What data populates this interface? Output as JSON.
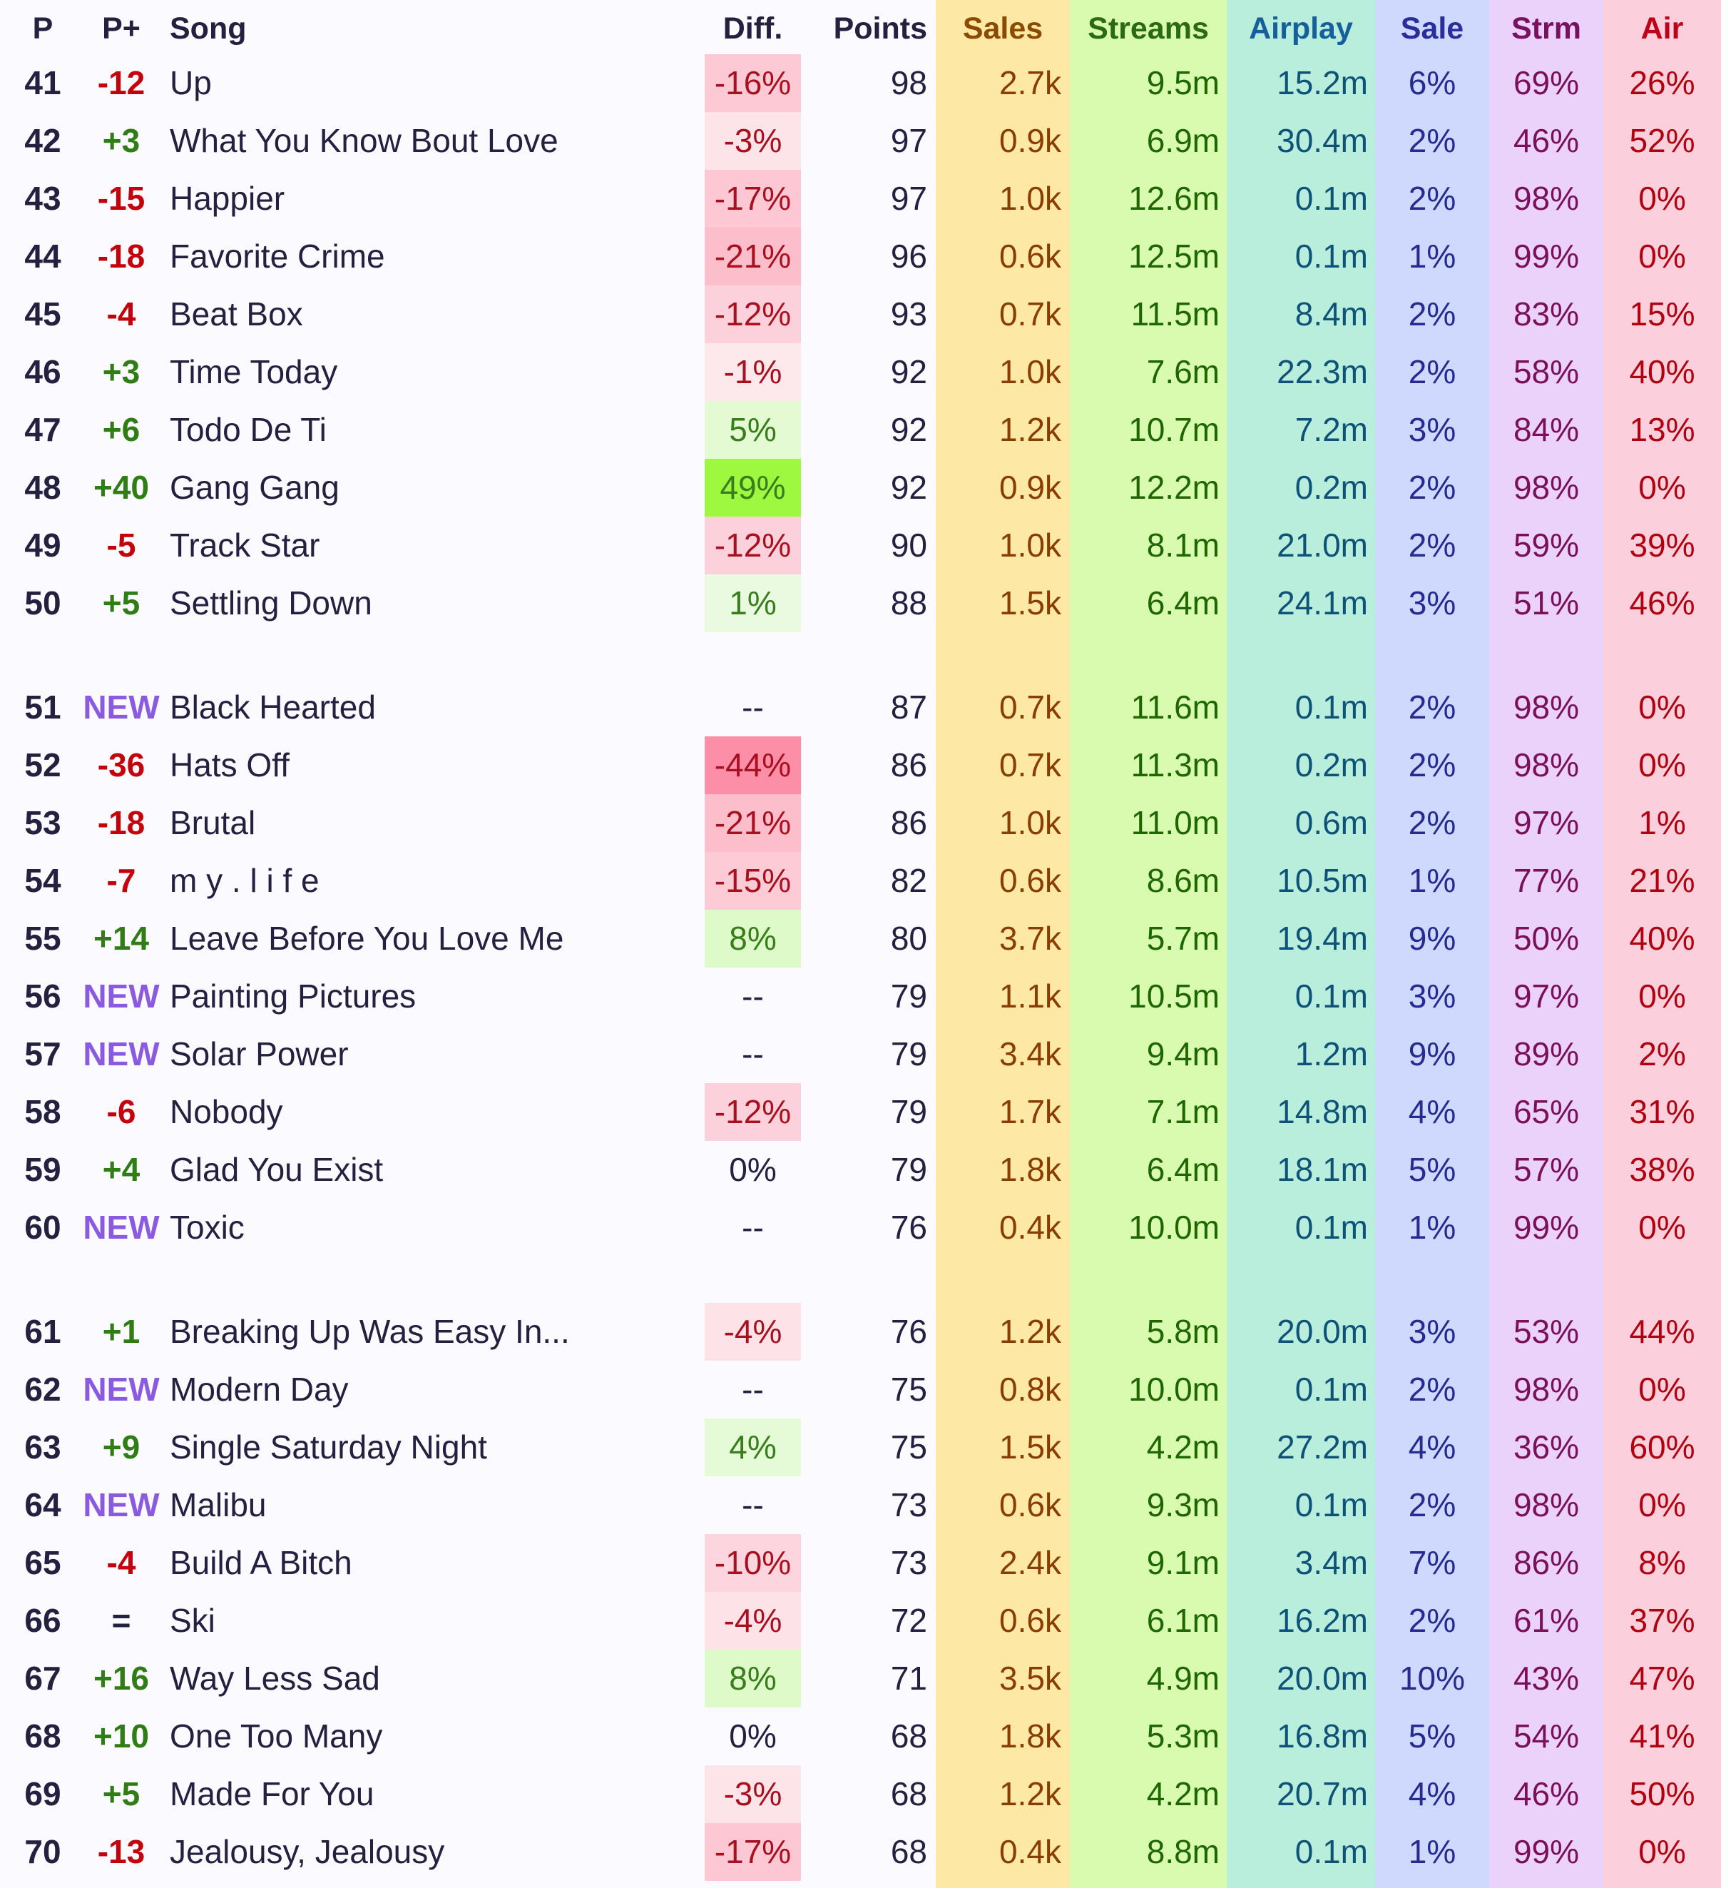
{
  "headers": {
    "p": "P",
    "pplus": "P+",
    "song": "Song",
    "diff": "Diff.",
    "points": "Points",
    "sales": "Sales",
    "streams": "Streams",
    "airplay": "Airplay",
    "sale": "Sale",
    "strm": "Strm",
    "air": "Air"
  },
  "colors": {
    "band_sales": "#fde8a6",
    "band_streams": "#d8fbb0",
    "band_airplay": "#b9eedd",
    "band_sale": "#cfd9fd",
    "band_strm": "#ead2fb",
    "band_air": "#fbd0dc",
    "hdr_sales": "#8a4a00",
    "hdr_streams": "#2a6a10",
    "hdr_airplay": "#15609a",
    "hdr_sale": "#2c2c9a",
    "hdr_strm": "#7a1060",
    "hdr_air": "#c00018",
    "change_up": "#2f7d14",
    "change_down": "#c4000c",
    "change_new": "#8a5ae0",
    "change_same": "#232040",
    "diff_pos_text": "#3a7d1c",
    "diff_neg_text": "#a81020",
    "diff_zero_text": "#232040"
  },
  "rows": [
    {
      "pos": "41",
      "change": "-12",
      "song": "Up",
      "diff": "-16%",
      "points": "98",
      "sales": "2.7k",
      "streams": "9.5m",
      "airplay": "15.2m",
      "sale": "6%",
      "strm": "69%",
      "air": "26%"
    },
    {
      "pos": "42",
      "change": "+3",
      "song": "What You Know Bout Love",
      "diff": "-3%",
      "points": "97",
      "sales": "0.9k",
      "streams": "6.9m",
      "airplay": "30.4m",
      "sale": "2%",
      "strm": "46%",
      "air": "52%"
    },
    {
      "pos": "43",
      "change": "-15",
      "song": "Happier",
      "diff": "-17%",
      "points": "97",
      "sales": "1.0k",
      "streams": "12.6m",
      "airplay": "0.1m",
      "sale": "2%",
      "strm": "98%",
      "air": "0%"
    },
    {
      "pos": "44",
      "change": "-18",
      "song": "Favorite Crime",
      "diff": "-21%",
      "points": "96",
      "sales": "0.6k",
      "streams": "12.5m",
      "airplay": "0.1m",
      "sale": "1%",
      "strm": "99%",
      "air": "0%"
    },
    {
      "pos": "45",
      "change": "-4",
      "song": "Beat Box",
      "diff": "-12%",
      "points": "93",
      "sales": "0.7k",
      "streams": "11.5m",
      "airplay": "8.4m",
      "sale": "2%",
      "strm": "83%",
      "air": "15%"
    },
    {
      "pos": "46",
      "change": "+3",
      "song": "Time Today",
      "diff": "-1%",
      "points": "92",
      "sales": "1.0k",
      "streams": "7.6m",
      "airplay": "22.3m",
      "sale": "2%",
      "strm": "58%",
      "air": "40%"
    },
    {
      "pos": "47",
      "change": "+6",
      "song": "Todo De Ti",
      "diff": "5%",
      "points": "92",
      "sales": "1.2k",
      "streams": "10.7m",
      "airplay": "7.2m",
      "sale": "3%",
      "strm": "84%",
      "air": "13%"
    },
    {
      "pos": "48",
      "change": "+40",
      "song": "Gang Gang",
      "diff": "49%",
      "points": "92",
      "sales": "0.9k",
      "streams": "12.2m",
      "airplay": "0.2m",
      "sale": "2%",
      "strm": "98%",
      "air": "0%"
    },
    {
      "pos": "49",
      "change": "-5",
      "song": "Track Star",
      "diff": "-12%",
      "points": "90",
      "sales": "1.0k",
      "streams": "8.1m",
      "airplay": "21.0m",
      "sale": "2%",
      "strm": "59%",
      "air": "39%"
    },
    {
      "pos": "50",
      "change": "+5",
      "song": "Settling Down",
      "diff": "1%",
      "points": "88",
      "sales": "1.5k",
      "streams": "6.4m",
      "airplay": "24.1m",
      "sale": "3%",
      "strm": "51%",
      "air": "46%"
    },
    {
      "pos": "51",
      "change": "NEW",
      "song": "Black Hearted",
      "diff": "--",
      "points": "87",
      "sales": "0.7k",
      "streams": "11.6m",
      "airplay": "0.1m",
      "sale": "2%",
      "strm": "98%",
      "air": "0%"
    },
    {
      "pos": "52",
      "change": "-36",
      "song": "Hats Off",
      "diff": "-44%",
      "points": "86",
      "sales": "0.7k",
      "streams": "11.3m",
      "airplay": "0.2m",
      "sale": "2%",
      "strm": "98%",
      "air": "0%"
    },
    {
      "pos": "53",
      "change": "-18",
      "song": "Brutal",
      "diff": "-21%",
      "points": "86",
      "sales": "1.0k",
      "streams": "11.0m",
      "airplay": "0.6m",
      "sale": "2%",
      "strm": "97%",
      "air": "1%"
    },
    {
      "pos": "54",
      "change": "-7",
      "song": "m y . l i f e",
      "diff": "-15%",
      "points": "82",
      "sales": "0.6k",
      "streams": "8.6m",
      "airplay": "10.5m",
      "sale": "1%",
      "strm": "77%",
      "air": "21%"
    },
    {
      "pos": "55",
      "change": "+14",
      "song": "Leave Before You Love Me",
      "diff": "8%",
      "points": "80",
      "sales": "3.7k",
      "streams": "5.7m",
      "airplay": "19.4m",
      "sale": "9%",
      "strm": "50%",
      "air": "40%"
    },
    {
      "pos": "56",
      "change": "NEW",
      "song": "Painting Pictures",
      "diff": "--",
      "points": "79",
      "sales": "1.1k",
      "streams": "10.5m",
      "airplay": "0.1m",
      "sale": "3%",
      "strm": "97%",
      "air": "0%"
    },
    {
      "pos": "57",
      "change": "NEW",
      "song": "Solar Power",
      "diff": "--",
      "points": "79",
      "sales": "3.4k",
      "streams": "9.4m",
      "airplay": "1.2m",
      "sale": "9%",
      "strm": "89%",
      "air": "2%"
    },
    {
      "pos": "58",
      "change": "-6",
      "song": "Nobody",
      "diff": "-12%",
      "points": "79",
      "sales": "1.7k",
      "streams": "7.1m",
      "airplay": "14.8m",
      "sale": "4%",
      "strm": "65%",
      "air": "31%"
    },
    {
      "pos": "59",
      "change": "+4",
      "song": "Glad You Exist",
      "diff": "0%",
      "points": "79",
      "sales": "1.8k",
      "streams": "6.4m",
      "airplay": "18.1m",
      "sale": "5%",
      "strm": "57%",
      "air": "38%"
    },
    {
      "pos": "60",
      "change": "NEW",
      "song": "Toxic",
      "diff": "--",
      "points": "76",
      "sales": "0.4k",
      "streams": "10.0m",
      "airplay": "0.1m",
      "sale": "1%",
      "strm": "99%",
      "air": "0%"
    },
    {
      "pos": "61",
      "change": "+1",
      "song": "Breaking Up Was Easy In...",
      "diff": "-4%",
      "points": "76",
      "sales": "1.2k",
      "streams": "5.8m",
      "airplay": "20.0m",
      "sale": "3%",
      "strm": "53%",
      "air": "44%"
    },
    {
      "pos": "62",
      "change": "NEW",
      "song": "Modern Day",
      "diff": "--",
      "points": "75",
      "sales": "0.8k",
      "streams": "10.0m",
      "airplay": "0.1m",
      "sale": "2%",
      "strm": "98%",
      "air": "0%"
    },
    {
      "pos": "63",
      "change": "+9",
      "song": "Single Saturday Night",
      "diff": "4%",
      "points": "75",
      "sales": "1.5k",
      "streams": "4.2m",
      "airplay": "27.2m",
      "sale": "4%",
      "strm": "36%",
      "air": "60%"
    },
    {
      "pos": "64",
      "change": "NEW",
      "song": "Malibu",
      "diff": "--",
      "points": "73",
      "sales": "0.6k",
      "streams": "9.3m",
      "airplay": "0.1m",
      "sale": "2%",
      "strm": "98%",
      "air": "0%"
    },
    {
      "pos": "65",
      "change": "-4",
      "song": "Build A Bitch",
      "diff": "-10%",
      "points": "73",
      "sales": "2.4k",
      "streams": "9.1m",
      "airplay": "3.4m",
      "sale": "7%",
      "strm": "86%",
      "air": "8%"
    },
    {
      "pos": "66",
      "change": "=",
      "song": "Ski",
      "diff": "-4%",
      "points": "72",
      "sales": "0.6k",
      "streams": "6.1m",
      "airplay": "16.2m",
      "sale": "2%",
      "strm": "61%",
      "air": "37%"
    },
    {
      "pos": "67",
      "change": "+16",
      "song": "Way Less Sad",
      "diff": "8%",
      "points": "71",
      "sales": "3.5k",
      "streams": "4.9m",
      "airplay": "20.0m",
      "sale": "10%",
      "strm": "43%",
      "air": "47%"
    },
    {
      "pos": "68",
      "change": "+10",
      "song": "One Too Many",
      "diff": "0%",
      "points": "68",
      "sales": "1.8k",
      "streams": "5.3m",
      "airplay": "16.8m",
      "sale": "5%",
      "strm": "54%",
      "air": "41%"
    },
    {
      "pos": "69",
      "change": "+5",
      "song": "Made For You",
      "diff": "-3%",
      "points": "68",
      "sales": "1.2k",
      "streams": "4.2m",
      "airplay": "20.7m",
      "sale": "4%",
      "strm": "46%",
      "air": "50%"
    },
    {
      "pos": "70",
      "change": "-13",
      "song": "Jealousy, Jealousy",
      "diff": "-17%",
      "points": "68",
      "sales": "0.4k",
      "streams": "8.8m",
      "airplay": "0.1m",
      "sale": "1%",
      "strm": "99%",
      "air": "0%"
    }
  ]
}
